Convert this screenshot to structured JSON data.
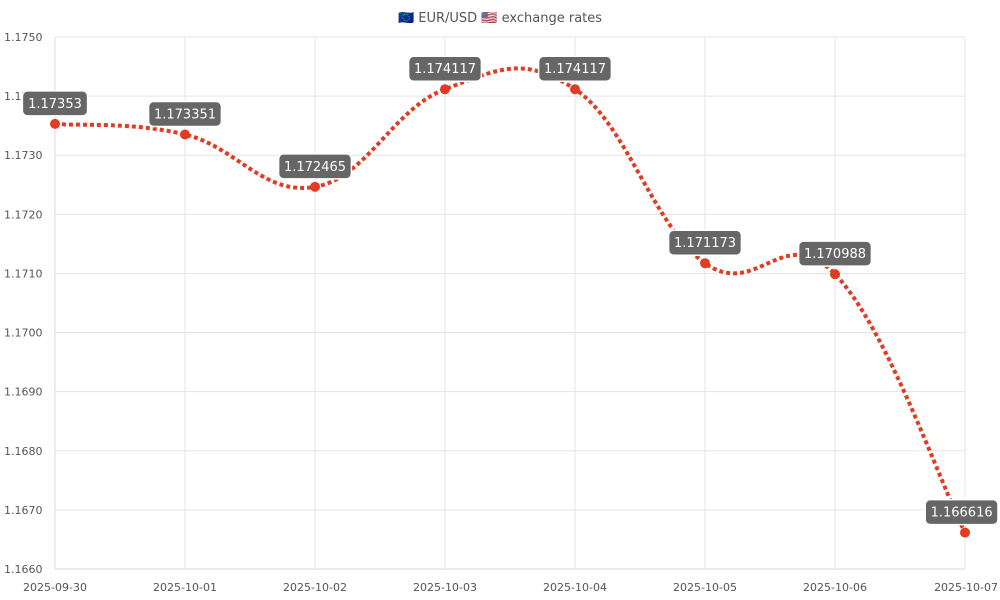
{
  "chart_data": {
    "type": "line",
    "title": "🇪🇺 EUR/USD 🇺🇸 exchange rates",
    "x": [
      "2025-09-30",
      "2025-10-01",
      "2025-10-02",
      "2025-10-03",
      "2025-10-04",
      "2025-10-05",
      "2025-10-06",
      "2025-10-07"
    ],
    "series": [
      {
        "values": [
          1.17353,
          1.173351,
          1.172465,
          1.174117,
          1.174117,
          1.171173,
          1.170988,
          1.166616
        ],
        "data_labels": [
          "1.17353",
          "1.173351",
          "1.172465",
          "1.174117",
          "1.174117",
          "1.171173",
          "1.170988",
          "1.166616"
        ],
        "color": "#e03c24",
        "line_style": "dotted",
        "smooth": true
      }
    ],
    "ylim": [
      1.166,
      1.175
    ],
    "y_ticks": [
      "1.1660",
      "1.1670",
      "1.1680",
      "1.1690",
      "1.1700",
      "1.1710",
      "1.1720",
      "1.1730",
      "1.1740",
      "1.1750"
    ],
    "grid": true,
    "colors": {
      "line": "#e03c24",
      "label_bg": "#666666",
      "label_text": "#ffffff",
      "grid": "#e5e5e5"
    }
  }
}
